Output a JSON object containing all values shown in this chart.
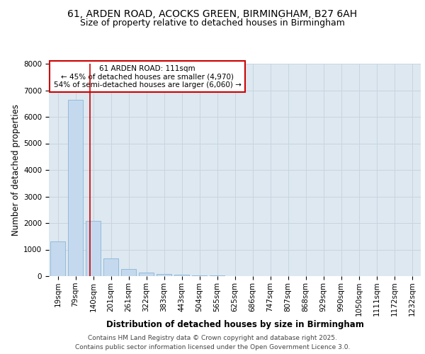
{
  "title_line1": "61, ARDEN ROAD, ACOCKS GREEN, BIRMINGHAM, B27 6AH",
  "title_line2": "Size of property relative to detached houses in Birmingham",
  "xlabel": "Distribution of detached houses by size in Birmingham",
  "ylabel": "Number of detached properties",
  "bar_labels": [
    "19sqm",
    "79sqm",
    "140sqm",
    "201sqm",
    "261sqm",
    "322sqm",
    "383sqm",
    "443sqm",
    "504sqm",
    "565sqm",
    "625sqm",
    "686sqm",
    "747sqm",
    "807sqm",
    "868sqm",
    "929sqm",
    "990sqm",
    "1050sqm",
    "1111sqm",
    "1172sqm",
    "1232sqm"
  ],
  "bar_values": [
    1310,
    6650,
    2080,
    680,
    280,
    130,
    75,
    50,
    30,
    15,
    8,
    3,
    2,
    1,
    1,
    0,
    0,
    0,
    0,
    0,
    0
  ],
  "bar_color": "#c5d9ee",
  "bar_edgecolor": "#7aadd4",
  "bar_linewidth": 0.5,
  "grid_color": "#c8d4e0",
  "bg_color": "#dde8f0",
  "vline_x": 1.82,
  "vline_color": "#cc0000",
  "annotation_text": "61 ARDEN ROAD: 111sqm\n← 45% of detached houses are smaller (4,970)\n54% of semi-detached houses are larger (6,060) →",
  "annotation_box_edgecolor": "#cc0000",
  "annotation_box_facecolor": "#ffffff",
  "ylim": [
    0,
    8000
  ],
  "yticks": [
    0,
    1000,
    2000,
    3000,
    4000,
    5000,
    6000,
    7000,
    8000
  ],
  "footer_line1": "Contains HM Land Registry data © Crown copyright and database right 2025.",
  "footer_line2": "Contains public sector information licensed under the Open Government Licence 3.0.",
  "title_fontsize": 10,
  "subtitle_fontsize": 9,
  "axis_label_fontsize": 8.5,
  "tick_fontsize": 7.5,
  "annotation_fontsize": 7.5,
  "footer_fontsize": 6.5
}
